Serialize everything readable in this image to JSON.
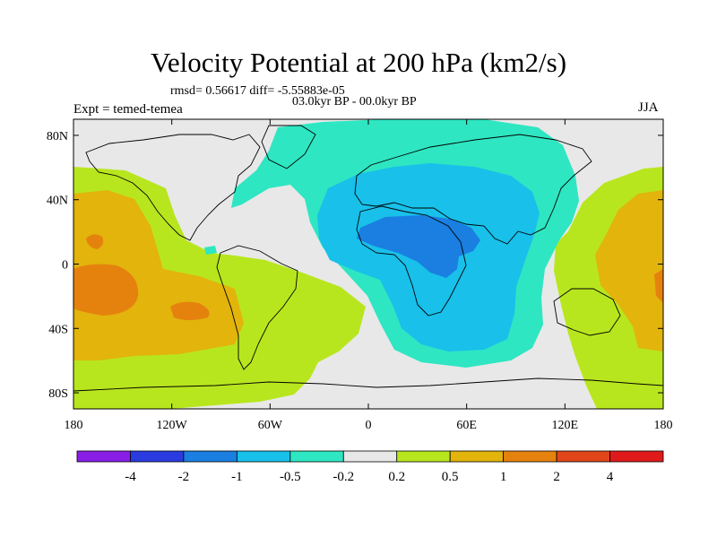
{
  "title": "Velocity Potential at 200 hPa (km2/s)",
  "stats": "rmsd= 0.56617 diff= -5.55883e-05",
  "period": "03.0kyr BP - 00.0kyr BP",
  "experiment": "Expt = temed-temea",
  "season": "JJA",
  "map": {
    "projection": "cylindrical equidistant",
    "lon_range": [
      -180,
      180
    ],
    "lat_range": [
      -90,
      90
    ],
    "lon_ticks": [
      {
        "value": -180,
        "label": "180"
      },
      {
        "value": -120,
        "label": "120W"
      },
      {
        "value": -60,
        "label": "60W"
      },
      {
        "value": 0,
        "label": "0"
      },
      {
        "value": 60,
        "label": "60E"
      },
      {
        "value": 120,
        "label": "120E"
      },
      {
        "value": 180,
        "label": "180"
      }
    ],
    "lat_ticks": [
      {
        "value": 80,
        "label": "80N"
      },
      {
        "value": 40,
        "label": "40N"
      },
      {
        "value": 0,
        "label": "0"
      },
      {
        "value": -40,
        "label": "40S"
      },
      {
        "value": -80,
        "label": "80S"
      }
    ]
  },
  "colorbar": {
    "levels": [
      "-4",
      "-2",
      "-1",
      "-0.5",
      "-0.2",
      "0.2",
      "0.5",
      "1",
      "2",
      "4"
    ],
    "colors": [
      "#8a1ee6",
      "#2a3ce0",
      "#1a7fe0",
      "#18c0ea",
      "#2ee6c2",
      "#e8e8e8",
      "#b8e61e",
      "#e2b40c",
      "#e5820e",
      "#e0461a",
      "#e01a1a"
    ]
  }
}
